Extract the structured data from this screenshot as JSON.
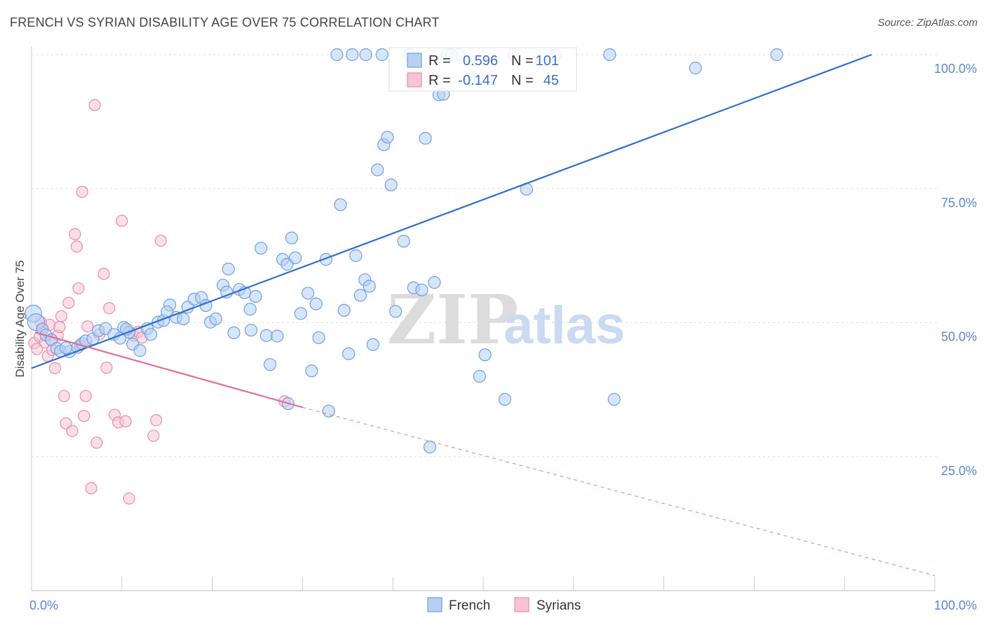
{
  "title": "FRENCH VS SYRIAN DISABILITY AGE OVER 75 CORRELATION CHART",
  "source": "Source: ZipAtlas.com",
  "watermark": {
    "zip": "ZIP",
    "atlas": "atlas"
  },
  "colors": {
    "french": "#6ea0e0",
    "french_fill": "#b7d0f2",
    "french_line": "#2f6ecb",
    "syrians": "#e98bab",
    "syrians_fill": "#f6c4d5",
    "syrians_line": "#e36d97",
    "grid": "#dddddd",
    "tick_text": "#5b86cc"
  },
  "legend_top": {
    "rows": [
      {
        "r_label": "R =",
        "r_value": "0.596",
        "n_label": "N =",
        "n_value": "101"
      },
      {
        "r_label": "R =",
        "r_value": "-0.147",
        "n_label": "N =",
        "n_value": "45"
      }
    ]
  },
  "legend_bottom": [
    "French",
    "Syrians"
  ],
  "chart_data": {
    "type": "scatter",
    "title": "FRENCH VS SYRIAN DISABILITY AGE OVER 75 CORRELATION CHART",
    "xlabel": "",
    "ylabel": "Disability Age Over 75",
    "xlim": [
      0,
      100
    ],
    "ylim": [
      0,
      100
    ],
    "x_tick_labels": [
      "0.0%",
      "100.0%"
    ],
    "y_tick_labels": [
      "100.0%",
      "75.0%",
      "50.0%",
      "25.0%"
    ],
    "y_ticks": [
      100,
      75,
      50,
      25
    ],
    "grid": true,
    "legend_placement": "top-center",
    "series": [
      {
        "name": "French",
        "R": 0.596,
        "N": 101,
        "trend": {
          "x": [
            0,
            93
          ],
          "y": [
            41.5,
            100
          ]
        },
        "points": [
          [
            0.2,
            51.7
          ],
          [
            0.5,
            50.1
          ],
          [
            1.2,
            48.8
          ],
          [
            1.6,
            47.7
          ],
          [
            2.2,
            46.8
          ],
          [
            2.8,
            45.2
          ],
          [
            3.2,
            44.7
          ],
          [
            4.2,
            44.6
          ],
          [
            5.1,
            45.4
          ],
          [
            5.6,
            46.1
          ],
          [
            6.0,
            46.6
          ],
          [
            6.8,
            47.0
          ],
          [
            7.4,
            48.5
          ],
          [
            8.2,
            48.9
          ],
          [
            9.1,
            47.8
          ],
          [
            9.8,
            47.1
          ],
          [
            10.2,
            49.1
          ],
          [
            10.8,
            48.2
          ],
          [
            11.2,
            46.0
          ],
          [
            12.0,
            44.8
          ],
          [
            12.8,
            48.9
          ],
          [
            13.2,
            47.8
          ],
          [
            14.0,
            50.1
          ],
          [
            14.6,
            50.4
          ],
          [
            15.3,
            53.3
          ],
          [
            16.0,
            51.0
          ],
          [
            16.8,
            50.7
          ],
          [
            17.3,
            52.9
          ],
          [
            18.0,
            54.4
          ],
          [
            18.8,
            54.7
          ],
          [
            19.3,
            53.2
          ],
          [
            19.8,
            50.1
          ],
          [
            20.4,
            50.7
          ],
          [
            21.2,
            57.0
          ],
          [
            21.6,
            55.7
          ],
          [
            22.4,
            48.1
          ],
          [
            23.0,
            56.2
          ],
          [
            23.6,
            55.6
          ],
          [
            24.3,
            48.6
          ],
          [
            24.8,
            54.9
          ],
          [
            25.4,
            63.9
          ],
          [
            26.0,
            47.6
          ],
          [
            26.4,
            42.2
          ],
          [
            27.2,
            47.5
          ],
          [
            27.8,
            61.8
          ],
          [
            28.3,
            60.9
          ],
          [
            28.8,
            65.8
          ],
          [
            29.2,
            62.1
          ],
          [
            28.4,
            34.9
          ],
          [
            29.8,
            51.7
          ],
          [
            30.6,
            55.5
          ],
          [
            31.0,
            41.0
          ],
          [
            31.5,
            53.5
          ],
          [
            31.8,
            47.2
          ],
          [
            32.6,
            61.8
          ],
          [
            32.9,
            33.5
          ],
          [
            33.8,
            100
          ],
          [
            34.2,
            72.0
          ],
          [
            34.6,
            52.3
          ],
          [
            35.1,
            44.2
          ],
          [
            35.9,
            62.5
          ],
          [
            36.4,
            55.1
          ],
          [
            36.9,
            58.0
          ],
          [
            37.4,
            56.8
          ],
          [
            37.8,
            45.9
          ],
          [
            38.3,
            78.5
          ],
          [
            38.8,
            100
          ],
          [
            39.0,
            83.2
          ],
          [
            39.4,
            84.6
          ],
          [
            39.8,
            75.7
          ],
          [
            40.3,
            52.1
          ],
          [
            41.2,
            65.2
          ],
          [
            41.8,
            100
          ],
          [
            42.3,
            56.5
          ],
          [
            43.2,
            56.1
          ],
          [
            43.6,
            84.4
          ],
          [
            44.1,
            26.8
          ],
          [
            44.6,
            57.5
          ],
          [
            45.1,
            92.5
          ],
          [
            45.6,
            92.6
          ],
          [
            46.0,
            100
          ],
          [
            47.3,
            100
          ],
          [
            48.4,
            95.4
          ],
          [
            49.6,
            40.0
          ],
          [
            50.2,
            44.0
          ],
          [
            52.4,
            35.7
          ],
          [
            53.4,
            100
          ],
          [
            54.8,
            74.9
          ],
          [
            58.0,
            100
          ],
          [
            64.0,
            100
          ],
          [
            64.5,
            35.7
          ],
          [
            73.5,
            97.5
          ],
          [
            82.5,
            100
          ],
          [
            46.5,
            100
          ],
          [
            37.0,
            100
          ],
          [
            35.5,
            100
          ],
          [
            21.8,
            60.0
          ],
          [
            15.0,
            52.0
          ],
          [
            24.2,
            52.5
          ],
          [
            10.5,
            48.8
          ],
          [
            3.8,
            45.3
          ]
        ]
      },
      {
        "name": "Syrians",
        "R": -0.147,
        "N": 45,
        "trend": {
          "x": [
            0,
            30
          ],
          "y": [
            48.2,
            34.2
          ]
        },
        "trend_dashed": {
          "x": [
            30,
            100
          ],
          "y": [
            34.2,
            2.8
          ]
        },
        "points": [
          [
            0.3,
            46.2
          ],
          [
            0.6,
            45.1
          ],
          [
            0.9,
            47.4
          ],
          [
            1.2,
            48.7
          ],
          [
            1.5,
            46.3
          ],
          [
            1.8,
            43.8
          ],
          [
            2.0,
            49.6
          ],
          [
            2.3,
            44.9
          ],
          [
            2.6,
            41.5
          ],
          [
            2.9,
            47.6
          ],
          [
            3.1,
            49.2
          ],
          [
            3.3,
            51.2
          ],
          [
            3.6,
            36.3
          ],
          [
            3.8,
            31.2
          ],
          [
            4.1,
            53.7
          ],
          [
            4.5,
            29.8
          ],
          [
            4.8,
            66.5
          ],
          [
            5.0,
            64.2
          ],
          [
            5.2,
            56.4
          ],
          [
            5.6,
            74.4
          ],
          [
            5.8,
            32.6
          ],
          [
            6.0,
            36.3
          ],
          [
            6.2,
            49.3
          ],
          [
            6.6,
            19.1
          ],
          [
            7.0,
            90.6
          ],
          [
            7.2,
            27.6
          ],
          [
            7.5,
            47.8
          ],
          [
            8.0,
            59.1
          ],
          [
            8.3,
            41.6
          ],
          [
            8.6,
            52.7
          ],
          [
            9.2,
            32.8
          ],
          [
            9.6,
            31.4
          ],
          [
            10.0,
            69.0
          ],
          [
            10.4,
            31.6
          ],
          [
            10.8,
            17.2
          ],
          [
            11.3,
            47.6
          ],
          [
            11.8,
            48.3
          ],
          [
            12.2,
            47.2
          ],
          [
            13.5,
            28.9
          ],
          [
            13.8,
            31.8
          ],
          [
            14.3,
            65.3
          ],
          [
            28.0,
            35.3
          ],
          [
            5.4,
            45.8
          ],
          [
            1.0,
            50.1
          ],
          [
            2.2,
            46.8
          ]
        ]
      }
    ]
  }
}
